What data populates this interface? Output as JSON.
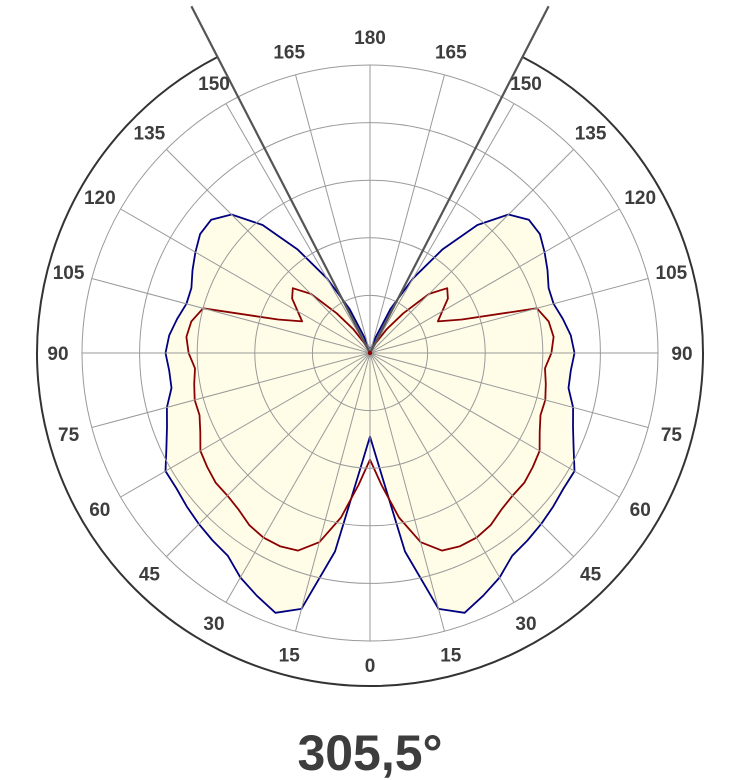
{
  "chart_data": {
    "type": "polar",
    "beam_angle_label": "305,5°",
    "angle_tick_labels": [
      {
        "angle": 0,
        "text": "0"
      },
      {
        "angle": 15,
        "text": "15"
      },
      {
        "angle": -15,
        "text": "15"
      },
      {
        "angle": 30,
        "text": "30"
      },
      {
        "angle": -30,
        "text": "30"
      },
      {
        "angle": 45,
        "text": "45"
      },
      {
        "angle": -45,
        "text": "45"
      },
      {
        "angle": 60,
        "text": "60"
      },
      {
        "angle": -60,
        "text": "60"
      },
      {
        "angle": 75,
        "text": "75"
      },
      {
        "angle": -75,
        "text": "75"
      },
      {
        "angle": 90,
        "text": "90"
      },
      {
        "angle": -90,
        "text": "90"
      },
      {
        "angle": 105,
        "text": "105"
      },
      {
        "angle": -105,
        "text": "105"
      },
      {
        "angle": 120,
        "text": "120"
      },
      {
        "angle": -120,
        "text": "120"
      },
      {
        "angle": 135,
        "text": "135"
      },
      {
        "angle": -135,
        "text": "135"
      },
      {
        "angle": 150,
        "text": "150"
      },
      {
        "angle": -150,
        "text": "150"
      },
      {
        "angle": 165,
        "text": "165"
      },
      {
        "angle": -165,
        "text": "165"
      },
      {
        "angle": 180,
        "text": "180"
      }
    ],
    "radial_range": [
      0,
      1
    ],
    "grid_rings": [
      0.2,
      0.4,
      0.6,
      0.8,
      1.0
    ],
    "angular_grid_step_deg": 15,
    "beam_edge_angles": [
      152.75,
      -152.75
    ],
    "series": [
      {
        "color": "#000080",
        "fill": "#fffde8",
        "angles": [
          0,
          5,
          10,
          15,
          20,
          25,
          30,
          35,
          40,
          45,
          50,
          55,
          60,
          65,
          70,
          75,
          80,
          85,
          90,
          95,
          100,
          105,
          110,
          115,
          120,
          125,
          130,
          135,
          140,
          145,
          150,
          155,
          160,
          165,
          170,
          175,
          180
        ],
        "values": [
          0.29,
          0.41,
          0.7,
          0.92,
          0.96,
          0.93,
          0.9,
          0.86,
          0.85,
          0.84,
          0.83,
          0.82,
          0.82,
          0.78,
          0.75,
          0.73,
          0.7,
          0.7,
          0.71,
          0.7,
          0.68,
          0.66,
          0.66,
          0.68,
          0.7,
          0.72,
          0.72,
          0.68,
          0.58,
          0.44,
          0.3,
          0.17,
          0.06,
          0.02,
          0.01,
          0.0,
          0.0
        ]
      },
      {
        "color": "#8b0000",
        "angles": [
          0,
          5,
          10,
          15,
          20,
          25,
          30,
          35,
          40,
          45,
          50,
          55,
          60,
          65,
          70,
          75,
          80,
          85,
          90,
          95,
          100,
          105,
          110,
          115,
          120,
          125,
          130,
          135,
          140,
          145,
          150,
          155,
          160,
          165,
          170,
          175,
          180
        ],
        "values": [
          0.37,
          0.46,
          0.58,
          0.68,
          0.73,
          0.74,
          0.74,
          0.73,
          0.71,
          0.7,
          0.7,
          0.69,
          0.68,
          0.65,
          0.63,
          0.63,
          0.62,
          0.61,
          0.63,
          0.64,
          0.63,
          0.6,
          0.34,
          0.26,
          0.29,
          0.33,
          0.35,
          0.29,
          0.18,
          0.1,
          0.04,
          0.01,
          0.0,
          0.0,
          0.0,
          0.0,
          0.0
        ]
      }
    ]
  }
}
